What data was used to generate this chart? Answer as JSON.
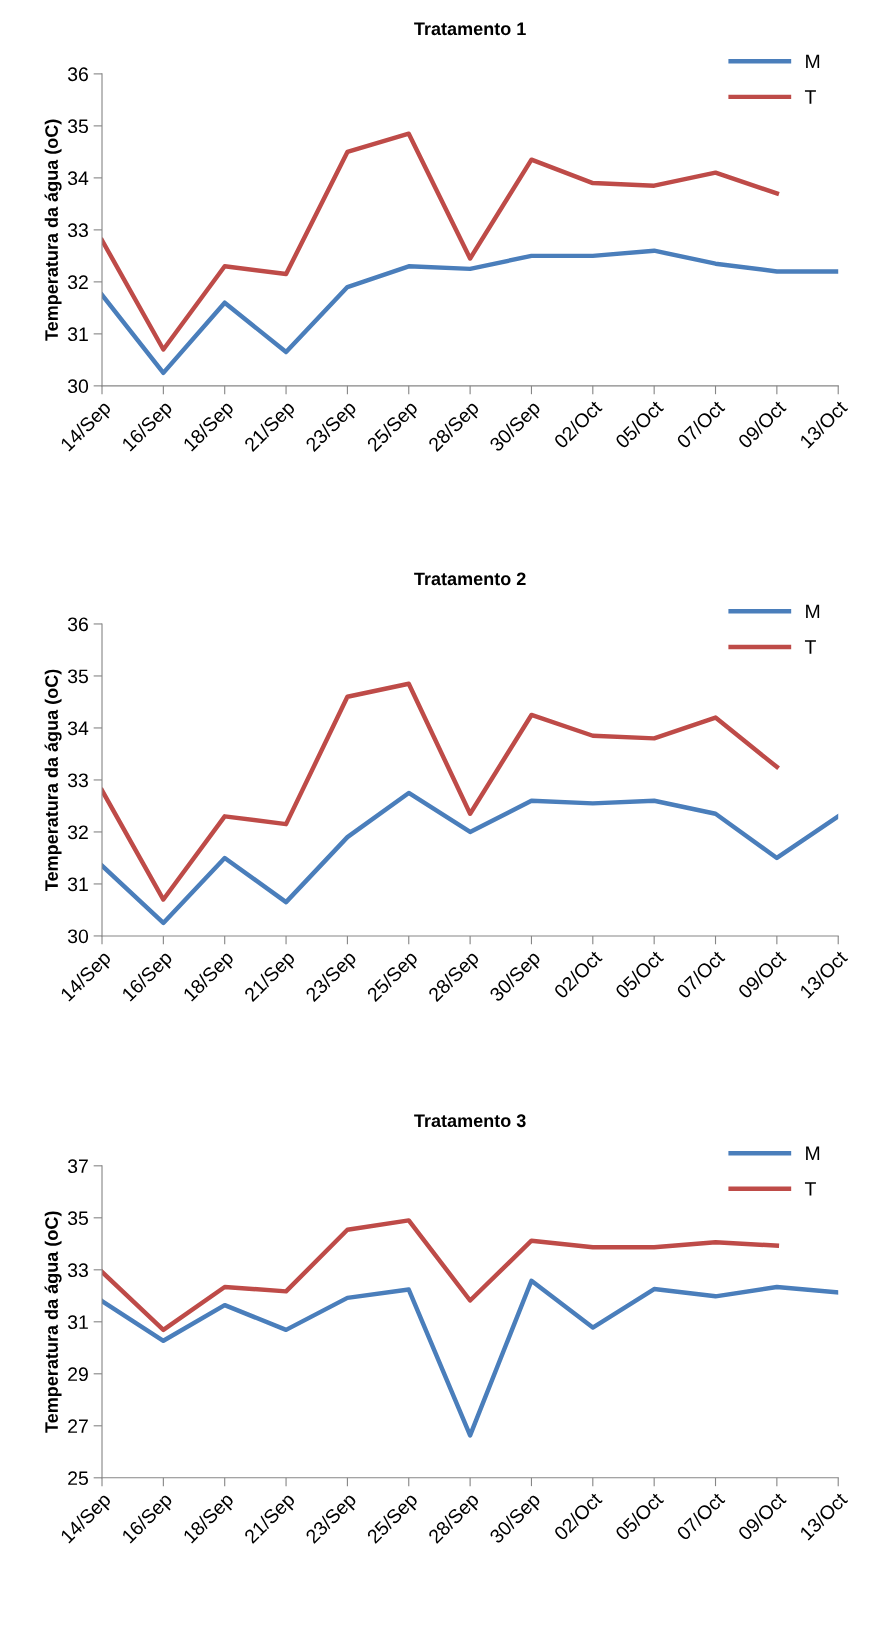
{
  "chart_data": [
    {
      "type": "line",
      "title": "Tratamento 1",
      "ylabel": "Temperatura da água (oC)",
      "categories": [
        "14/Sep",
        "16/Sep",
        "18/Sep",
        "21/Sep",
        "23/Sep",
        "25/Sep",
        "28/Sep",
        "30/Sep",
        "02/Oct",
        "05/Oct",
        "07/Oct",
        "09/Oct",
        "13/Oct"
      ],
      "ylim": [
        30,
        36
      ],
      "yticks": [
        30,
        31,
        32,
        33,
        34,
        35,
        36
      ],
      "grid": false,
      "legend": "top right",
      "marker": "none",
      "line_style": "solid",
      "series": [
        {
          "name": "M",
          "color": "#4a7ebb",
          "values": [
            31.75,
            30.25,
            31.6,
            30.65,
            31.9,
            32.3,
            32.25,
            32.5,
            32.5,
            32.6,
            32.35,
            32.2,
            32.2
          ]
        },
        {
          "name": "T",
          "color": "#be4b48",
          "values": [
            32.8,
            30.7,
            32.3,
            32.15,
            34.5,
            34.85,
            32.45,
            34.35,
            33.9,
            33.85,
            34.1,
            33.7,
            null
          ]
        }
      ]
    },
    {
      "type": "line",
      "title": "Tratamento 2",
      "ylabel": "Temperatura da água (oC)",
      "categories": [
        "14/Sep",
        "16/Sep",
        "18/Sep",
        "21/Sep",
        "23/Sep",
        "25/Sep",
        "28/Sep",
        "30/Sep",
        "02/Oct",
        "05/Oct",
        "07/Oct",
        "09/Oct",
        "13/Oct"
      ],
      "ylim": [
        30,
        36
      ],
      "yticks": [
        30,
        31,
        32,
        33,
        34,
        35,
        36
      ],
      "grid": false,
      "legend": "top right",
      "marker": "none",
      "line_style": "solid",
      "series": [
        {
          "name": "M",
          "color": "#4a7ebb",
          "values": [
            31.35,
            30.25,
            31.5,
            30.65,
            31.9,
            32.75,
            32.0,
            32.6,
            32.55,
            32.6,
            32.35,
            31.5,
            32.3
          ]
        },
        {
          "name": "T",
          "color": "#be4b48",
          "values": [
            32.8,
            30.7,
            32.3,
            32.15,
            34.6,
            34.85,
            32.35,
            34.25,
            33.85,
            33.8,
            34.2,
            33.25,
            null
          ]
        }
      ]
    },
    {
      "type": "line",
      "title": "Tratamento 3",
      "ylabel": "Temperatura da água (oC)",
      "categories": [
        "14/Sep",
        "16/Sep",
        "18/Sep",
        "21/Sep",
        "23/Sep",
        "25/Sep",
        "28/Sep",
        "30/Sep",
        "02/Oct",
        "05/Oct",
        "07/Oct",
        "09/Oct",
        "13/Oct"
      ],
      "ylim": [
        25,
        37
      ],
      "yticks": [
        25,
        27,
        29,
        31,
        33,
        35,
        37
      ],
      "grid": false,
      "legend": "top right",
      "marker": "none",
      "line_style": "solid",
      "series": [
        {
          "name": "M",
          "color": "#4a7ebb",
          "values": [
            31.8,
            30.27,
            31.64,
            30.69,
            31.92,
            32.24,
            26.63,
            32.58,
            30.78,
            32.26,
            31.98,
            32.34,
            32.13
          ]
        },
        {
          "name": "T",
          "color": "#be4b48",
          "values": [
            32.92,
            30.69,
            32.34,
            32.17,
            34.54,
            34.9,
            31.82,
            34.12,
            33.87,
            33.87,
            34.06,
            33.93,
            null
          ]
        }
      ]
    }
  ]
}
